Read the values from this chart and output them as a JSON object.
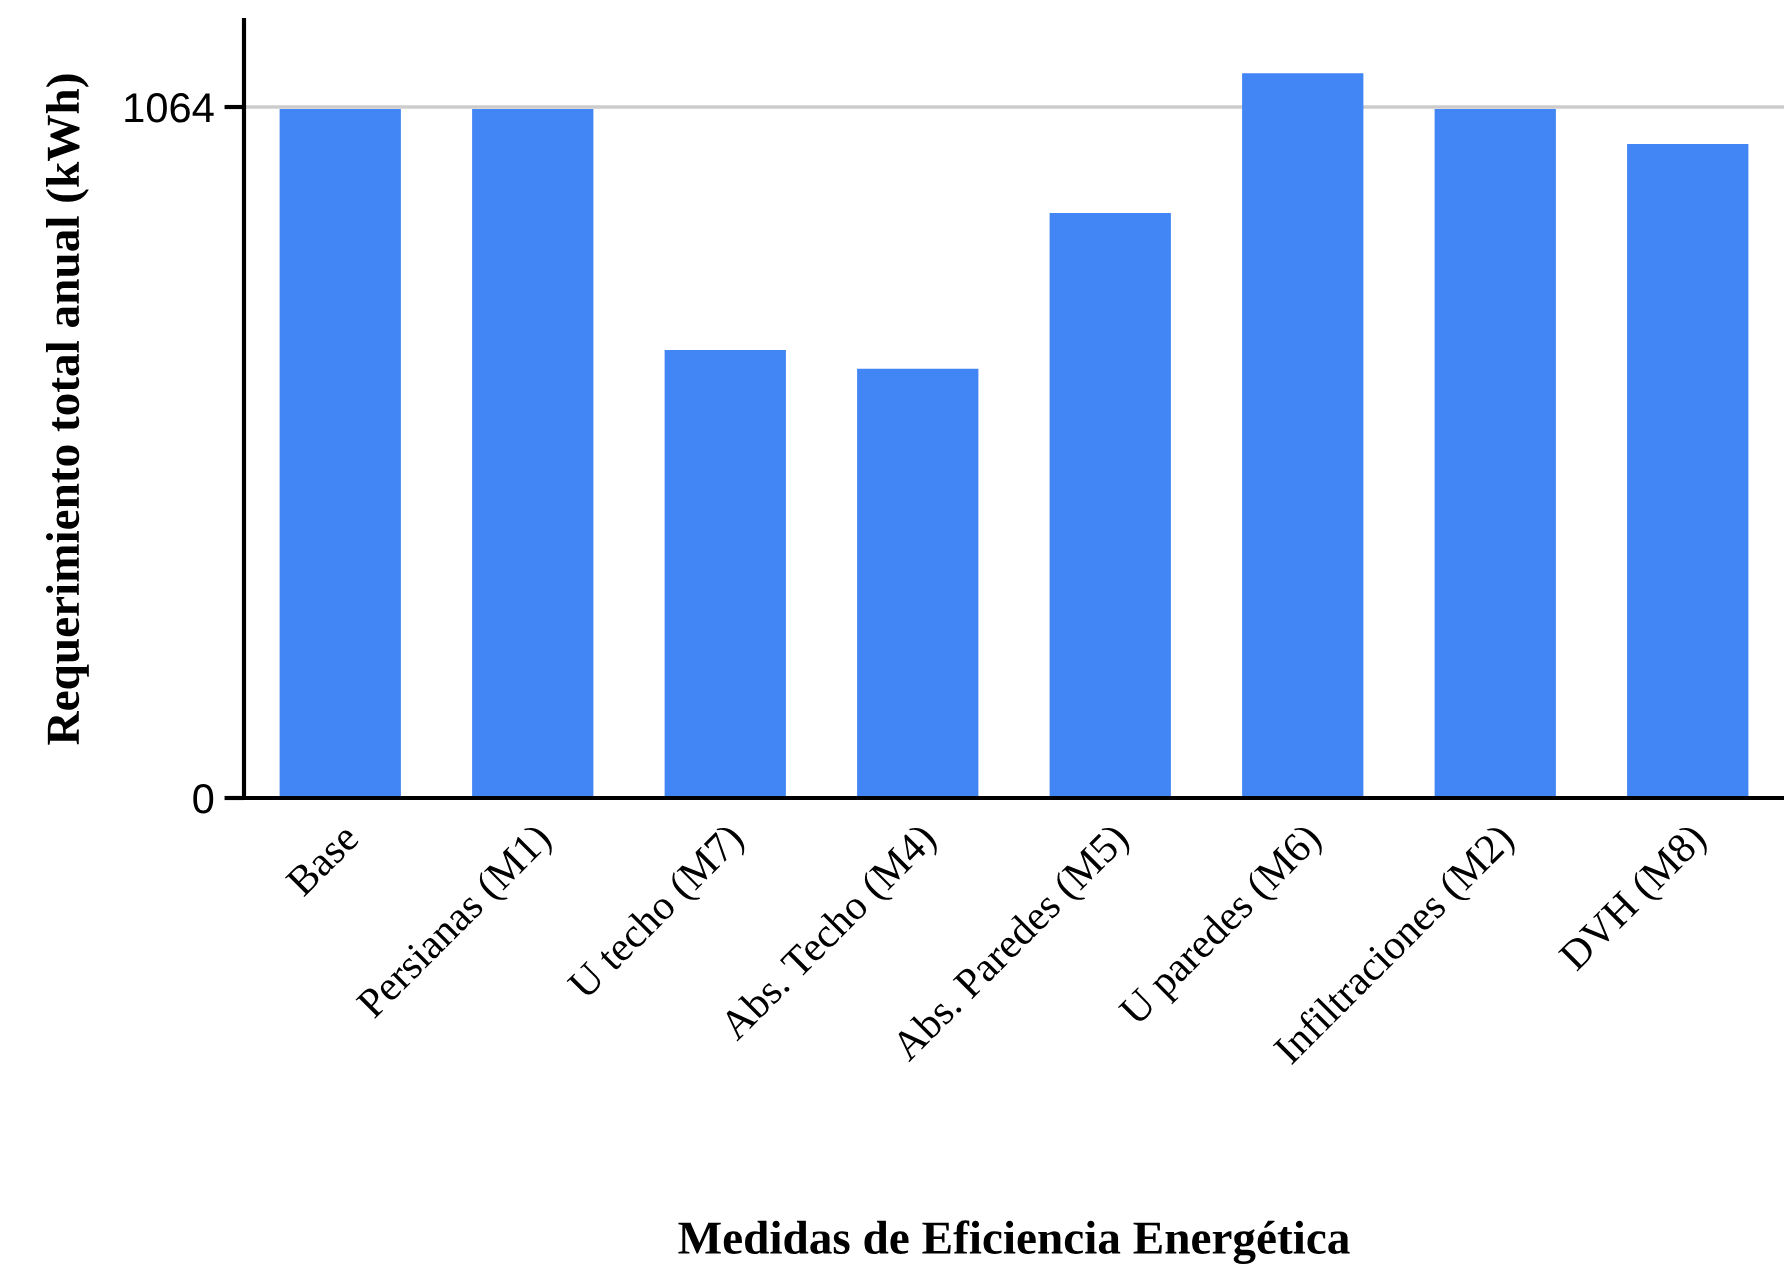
{
  "chart_data": {
    "type": "bar",
    "xlabel": "Medidas de Eficiencia Energética",
    "ylabel": "Requerimiento total anual (kWh)",
    "categories": [
      "Base",
      "Persianas (M1)",
      "U techo (M7)",
      "Abs. Techo (M4)",
      "Abs. Paredes (M5)",
      "U paredes (M6)",
      "Infiltraciones (M2)",
      "DVH (M8)"
    ],
    "values": [
      1061,
      1061,
      690,
      661,
      901,
      1116,
      1061,
      1007
    ],
    "color": "#4285f4",
    "ylim": [
      0,
      1198
    ],
    "yticks": [
      0,
      1064
    ],
    "grid": "y"
  }
}
